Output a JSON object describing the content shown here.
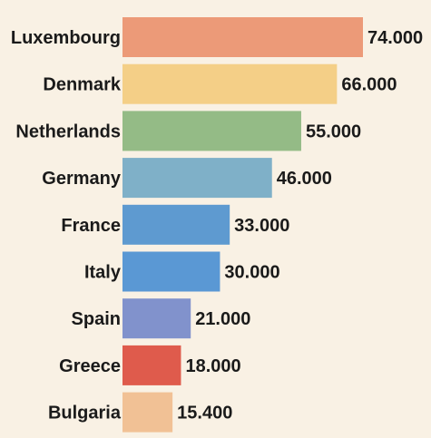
{
  "chart_data": {
    "type": "bar",
    "orientation": "horizontal",
    "title": "",
    "xlabel": "",
    "ylabel": "",
    "categories": [
      "Luxembourg",
      "Denmark",
      "Netherlands",
      "Germany",
      "France",
      "Italy",
      "Spain",
      "Greece",
      "Bulgaria"
    ],
    "values": [
      74.0,
      66.0,
      55.0,
      46.0,
      33.0,
      30.0,
      21.0,
      18.0,
      15.4
    ],
    "value_labels": [
      "74.000",
      "66.000",
      "55.000",
      "46.000",
      "33.000",
      "30.000",
      "21.000",
      "18.000",
      "15.400"
    ],
    "colors": [
      "#ec9a78",
      "#f4cf87",
      "#94bb86",
      "#7fb0c8",
      "#5e9ad0",
      "#5a98d4",
      "#8192cc",
      "#df5b4c",
      "#f1c195"
    ],
    "xlim": [
      0,
      74
    ],
    "grid": false,
    "legend": "none"
  }
}
